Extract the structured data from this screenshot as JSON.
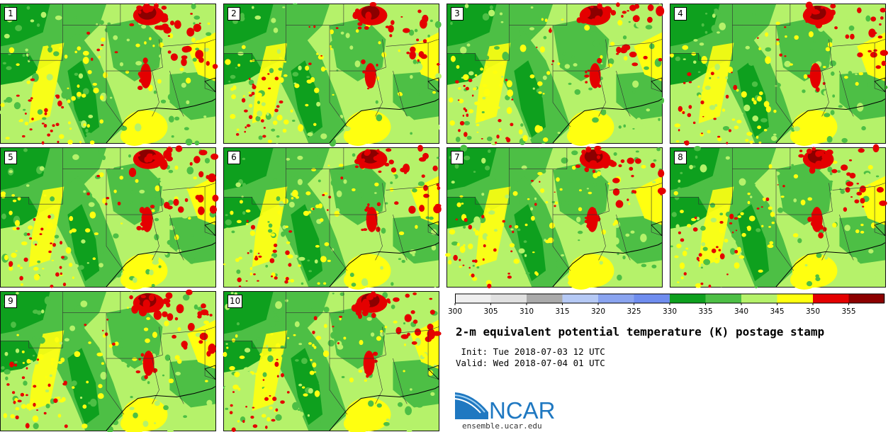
{
  "panels": [
    {
      "label": "1"
    },
    {
      "label": "2"
    },
    {
      "label": "3"
    },
    {
      "label": "4"
    },
    {
      "label": "5"
    },
    {
      "label": "6"
    },
    {
      "label": "7"
    },
    {
      "label": "8"
    },
    {
      "label": "9"
    },
    {
      "label": "10"
    }
  ],
  "colorbar": {
    "levels": [
      300,
      305,
      310,
      315,
      320,
      325,
      330,
      335,
      340,
      345,
      350,
      355,
      360
    ],
    "tick_labels": [
      "300",
      "305",
      "310",
      "315",
      "320",
      "325",
      "330",
      "335",
      "340",
      "345",
      "350",
      "355"
    ],
    "colors": [
      "#efefef",
      "#e0e0e0",
      "#aaaaaa",
      "#b5c9f5",
      "#8aa4f0",
      "#6f8def",
      "#0ea01e",
      "#4dbf45",
      "#b5f26a",
      "#ffff10",
      "#e40000",
      "#8c0000"
    ]
  },
  "title": "2-m equivalent potential temperature (K) postage stamp",
  "init_text": " Init: Tue 2018-07-03 12 UTC",
  "valid_text": "Valid: Wed 2018-07-04 01 UTC",
  "logo_text": "NCAR",
  "site_text": "ensemble.ucar.edu"
}
